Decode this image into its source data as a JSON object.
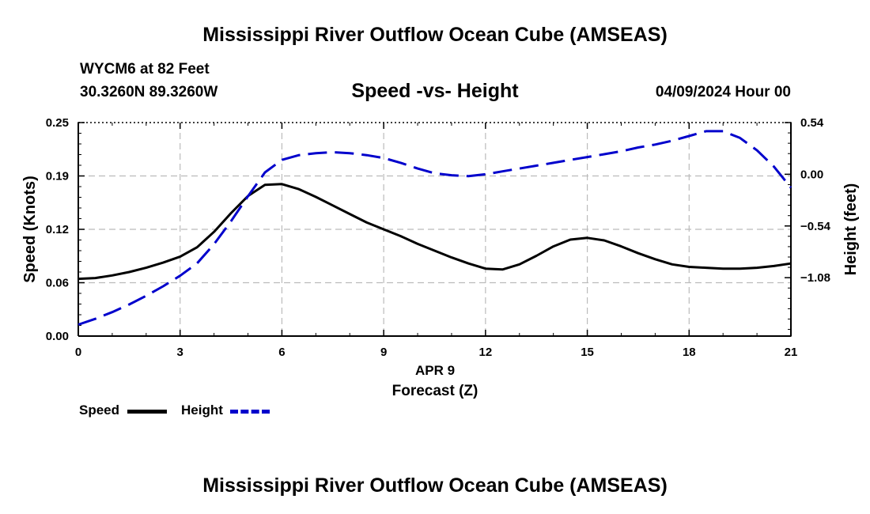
{
  "header": {
    "title": "Mississippi River Outflow Ocean Cube (AMSEAS)",
    "station": "WYCM6 at 82 Feet",
    "coords": "30.3260N  89.3260W",
    "subtitle": "Speed -vs- Height",
    "datetime": "04/09/2024 Hour 00"
  },
  "footer": {
    "title": "Mississippi River Outflow Ocean Cube (AMSEAS)"
  },
  "legend": {
    "speed_label": "Speed",
    "height_label": "Height"
  },
  "colors": {
    "speed": "#000000",
    "height": "#0000cc",
    "grid": "#bbbbbb"
  },
  "chart_data": {
    "type": "line",
    "title": "Speed -vs- Height",
    "xlabel": "Forecast (Z)",
    "xsublabel": "APR 9",
    "ylabel": "Speed (Knots)",
    "y2label": "Height (feet)",
    "xlim": [
      0,
      21
    ],
    "ylim": [
      0,
      0.25
    ],
    "y2lim": [
      -1.69,
      0.54
    ],
    "xticks": [
      0,
      3,
      6,
      9,
      12,
      15,
      18,
      21
    ],
    "xtick_labels": [
      "0",
      "3",
      "6",
      "9",
      "12",
      "15",
      "18",
      "21"
    ],
    "yticks": [
      0,
      0.0625,
      0.125,
      0.1875,
      0.25
    ],
    "ytick_labels": [
      "0.00",
      "0.06",
      "0.12",
      "0.19",
      "0.25"
    ],
    "y2ticks": [
      0.54,
      0,
      -0.54,
      -1.08
    ],
    "y2tick_labels": [
      "0.54",
      "0.00",
      "−0.54",
      "−1.08"
    ],
    "grid": true,
    "series": [
      {
        "name": "Speed",
        "axis": "left",
        "style": "solid",
        "x": [
          0,
          0.5,
          1,
          1.5,
          2,
          2.5,
          3,
          3.5,
          4,
          4.5,
          5,
          5.5,
          6,
          6.5,
          7,
          7.5,
          8,
          8.5,
          9,
          9.5,
          10,
          10.5,
          11,
          11.5,
          12,
          12.5,
          13,
          13.5,
          14,
          14.5,
          15,
          15.5,
          16,
          16.5,
          17,
          17.5,
          18,
          18.5,
          19,
          19.5,
          20,
          20.5,
          21
        ],
        "values": [
          0.067,
          0.068,
          0.071,
          0.075,
          0.08,
          0.086,
          0.093,
          0.104,
          0.122,
          0.144,
          0.164,
          0.177,
          0.178,
          0.172,
          0.163,
          0.153,
          0.143,
          0.133,
          0.125,
          0.117,
          0.108,
          0.1,
          0.092,
          0.085,
          0.079,
          0.078,
          0.084,
          0.094,
          0.105,
          0.113,
          0.115,
          0.112,
          0.105,
          0.097,
          0.09,
          0.084,
          0.081,
          0.08,
          0.079,
          0.079,
          0.08,
          0.082,
          0.085
        ]
      },
      {
        "name": "Height",
        "axis": "right",
        "style": "dashed",
        "x": [
          0,
          0.5,
          1,
          1.5,
          2,
          2.5,
          3,
          3.5,
          4,
          4.5,
          5,
          5.5,
          6,
          6.5,
          7,
          7.5,
          8,
          8.5,
          9,
          9.5,
          10,
          10.5,
          11,
          11.5,
          12,
          12.5,
          13,
          13.5,
          14,
          14.5,
          15,
          15.5,
          16,
          16.5,
          17,
          17.5,
          18,
          18.5,
          19,
          19.5,
          20,
          20.5,
          21
        ],
        "values": [
          -1.57,
          -1.51,
          -1.44,
          -1.36,
          -1.27,
          -1.17,
          -1.06,
          -0.93,
          -0.73,
          -0.49,
          -0.23,
          0.02,
          0.15,
          0.2,
          0.22,
          0.23,
          0.22,
          0.2,
          0.17,
          0.12,
          0.06,
          0.01,
          -0.01,
          -0.02,
          0.0,
          0.03,
          0.06,
          0.09,
          0.12,
          0.15,
          0.18,
          0.21,
          0.24,
          0.28,
          0.31,
          0.35,
          0.4,
          0.45,
          0.45,
          0.38,
          0.25,
          0.08,
          -0.14
        ]
      }
    ]
  }
}
